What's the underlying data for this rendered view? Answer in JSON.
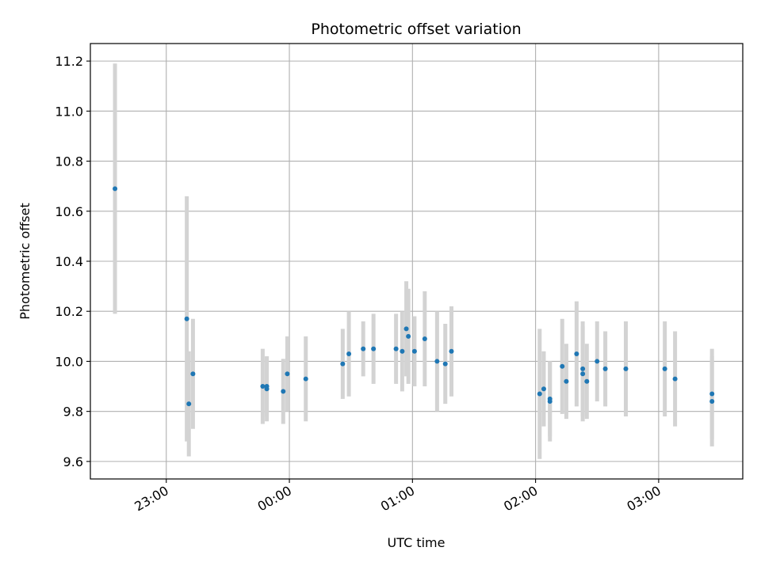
{
  "chart_data": {
    "type": "scatter",
    "title": "Photometric offset variation",
    "xlabel": "UTC time",
    "ylabel": "Photometric offset",
    "x_unit": "UTC clock time HH:MM (points after midnight are on the following day)",
    "xlim": [
      "22:23",
      "03:41"
    ],
    "ylim": [
      9.53,
      11.27
    ],
    "x_ticks": [
      "23:00",
      "00:00",
      "01:00",
      "02:00",
      "03:00"
    ],
    "y_ticks": [
      "9.6",
      "9.8",
      "10.0",
      "10.2",
      "10.4",
      "10.6",
      "10.8",
      "11.0",
      "11.2"
    ],
    "y_tick_values": [
      9.6,
      9.8,
      10.0,
      10.2,
      10.4,
      10.6,
      10.8,
      11.0,
      11.2
    ],
    "grid": true,
    "colors": {
      "points": "#1f77b4",
      "error_bars": "#d3d3d3",
      "grid": "#b0b0b0",
      "axes": "#000000"
    },
    "series": [
      {
        "points": [
          {
            "x": "22:35",
            "y": 10.69,
            "err": 0.5
          },
          {
            "x": "23:10",
            "y": 10.17,
            "err": 0.49
          },
          {
            "x": "23:11",
            "y": 9.83,
            "err": 0.21
          },
          {
            "x": "23:13",
            "y": 9.95,
            "err": 0.22
          },
          {
            "x": "23:47",
            "y": 9.9,
            "err": 0.15
          },
          {
            "x": "23:49",
            "y": 9.9,
            "err": 0.12
          },
          {
            "x": "23:49",
            "y": 9.89,
            "err": 0.13
          },
          {
            "x": "23:57",
            "y": 9.88,
            "err": 0.13
          },
          {
            "x": "23:59",
            "y": 9.95,
            "err": 0.15
          },
          {
            "x": "00:08",
            "y": 9.93,
            "err": 0.17
          },
          {
            "x": "00:26",
            "y": 9.99,
            "err": 0.14
          },
          {
            "x": "00:29",
            "y": 10.03,
            "err": 0.17
          },
          {
            "x": "00:36",
            "y": 10.05,
            "err": 0.11
          },
          {
            "x": "00:41",
            "y": 10.05,
            "err": 0.14
          },
          {
            "x": "00:52",
            "y": 10.05,
            "err": 0.14
          },
          {
            "x": "00:55",
            "y": 10.04,
            "err": 0.16
          },
          {
            "x": "00:57",
            "y": 10.13,
            "err": 0.19
          },
          {
            "x": "00:58",
            "y": 10.1,
            "err": 0.19
          },
          {
            "x": "01:01",
            "y": 10.04,
            "err": 0.14
          },
          {
            "x": "01:06",
            "y": 10.09,
            "err": 0.19
          },
          {
            "x": "01:12",
            "y": 10.0,
            "err": 0.2
          },
          {
            "x": "01:16",
            "y": 9.99,
            "err": 0.16
          },
          {
            "x": "01:19",
            "y": 10.04,
            "err": 0.18
          },
          {
            "x": "02:02",
            "y": 9.87,
            "err": 0.26
          },
          {
            "x": "02:04",
            "y": 9.89,
            "err": 0.15
          },
          {
            "x": "02:07",
            "y": 9.84,
            "err": 0.16
          },
          {
            "x": "02:07",
            "y": 9.85,
            "err": 0.15
          },
          {
            "x": "02:13",
            "y": 9.98,
            "err": 0.19
          },
          {
            "x": "02:15",
            "y": 9.92,
            "err": 0.15
          },
          {
            "x": "02:20",
            "y": 10.03,
            "err": 0.21
          },
          {
            "x": "02:23",
            "y": 9.97,
            "err": 0.19
          },
          {
            "x": "02:23",
            "y": 9.95,
            "err": 0.19
          },
          {
            "x": "02:25",
            "y": 9.92,
            "err": 0.15
          },
          {
            "x": "02:30",
            "y": 10.0,
            "err": 0.16
          },
          {
            "x": "02:34",
            "y": 9.97,
            "err": 0.15
          },
          {
            "x": "02:44",
            "y": 9.97,
            "err": 0.19
          },
          {
            "x": "03:03",
            "y": 9.97,
            "err": 0.19
          },
          {
            "x": "03:08",
            "y": 9.93,
            "err": 0.19
          },
          {
            "x": "03:26",
            "y": 9.87,
            "err": 0.18
          },
          {
            "x": "03:26",
            "y": 9.84,
            "err": 0.18
          }
        ]
      }
    ]
  }
}
